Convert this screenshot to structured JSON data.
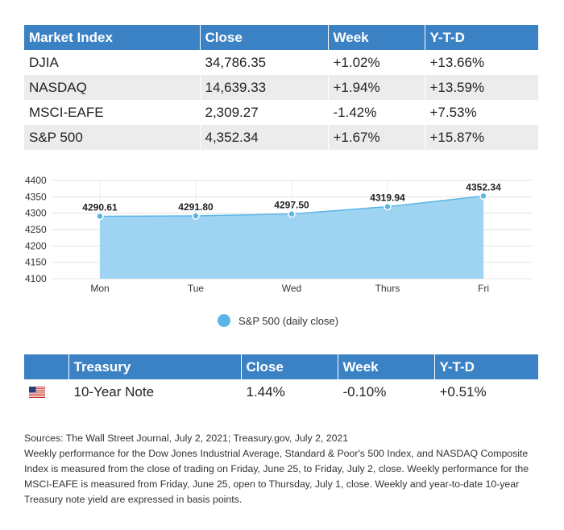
{
  "market_table": {
    "headers": [
      "Market Index",
      "Close",
      "Week",
      "Y-T-D"
    ],
    "rows": [
      [
        "DJIA",
        "34,786.35",
        "+1.02%",
        "+13.66%"
      ],
      [
        "NASDAQ",
        "14,639.33",
        "+1.94%",
        "+13.59%"
      ],
      [
        "MSCI-EAFE",
        "2,309.27",
        "-1.42%",
        "+7.53%"
      ],
      [
        "S&P 500",
        "4,352.34",
        "+1.67%",
        "+15.87%"
      ]
    ]
  },
  "chart_data": {
    "type": "area",
    "categories": [
      "Mon",
      "Tue",
      "Wed",
      "Thurs",
      "Fri"
    ],
    "series": [
      {
        "name": "S&P 500 (daily close)",
        "values": [
          4290.61,
          4291.8,
          4297.5,
          4319.94,
          4352.34
        ],
        "labels": [
          "4290.61",
          "4291.80",
          "4297.50",
          "4319.94",
          "4352.34"
        ],
        "color": "#5ab6e7",
        "fill": "#9fd3f2"
      }
    ],
    "ylim": [
      4100,
      4400
    ],
    "yticks": [
      4100,
      4150,
      4200,
      4250,
      4300,
      4350,
      4400
    ],
    "grid": true,
    "legend": "bottom-center"
  },
  "treasury_table": {
    "headers": [
      "",
      "Treasury",
      "Close",
      "Week",
      "Y-T-D"
    ],
    "rows": [
      [
        "flag-us",
        "10-Year Note",
        "1.44%",
        "-0.10%",
        "+0.51%"
      ]
    ]
  },
  "notes": {
    "sources": "Sources: The Wall Street Journal, July 2, 2021; Treasury.gov, July 2, 2021",
    "body": "Weekly performance for the Dow Jones Industrial Average, Standard & Poor's 500 Index, and NASDAQ Composite Index is measured from the close of trading on Friday, June 25, to Friday, July 2, close. Weekly performance for the MSCI-EAFE is measured from Friday, June 25, open to Thursday, July 1, close. Weekly and year-to-date 10-year Treasury note yield are expressed in basis points."
  }
}
